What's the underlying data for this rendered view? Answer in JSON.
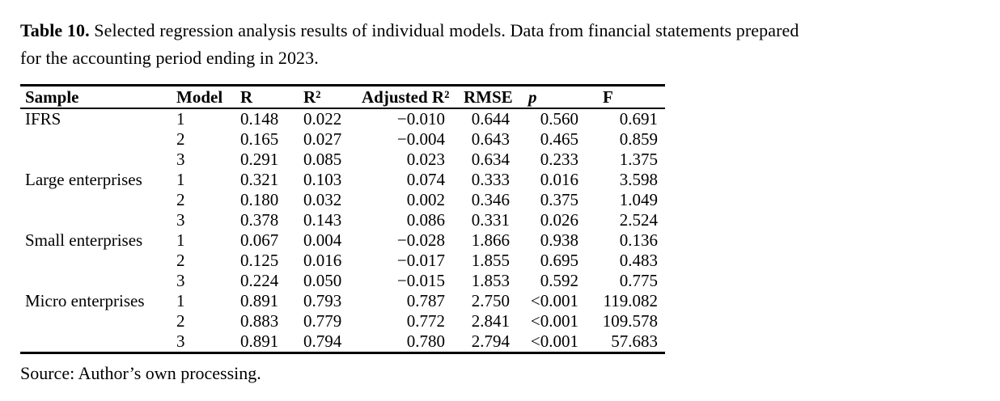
{
  "caption": {
    "label": "Table 10.",
    "line1": "Selected regression analysis results of individual models. Data from financial statements prepared",
    "line2": "for the accounting period ending in 2023."
  },
  "table": {
    "columns": [
      {
        "label": "Sample"
      },
      {
        "label": "Model"
      },
      {
        "label": "R"
      },
      {
        "label": "R²"
      },
      {
        "label": "Adjusted R²"
      },
      {
        "label": "RMSE"
      },
      {
        "label": "p"
      },
      {
        "label": "F"
      }
    ],
    "rows": [
      [
        "IFRS",
        "1",
        "0.148",
        "0.022",
        "−0.010",
        "0.644",
        "0.560",
        "0.691"
      ],
      [
        "",
        "2",
        "0.165",
        "0.027",
        "−0.004",
        "0.643",
        "0.465",
        "0.859"
      ],
      [
        "",
        "3",
        "0.291",
        "0.085",
        "0.023",
        "0.634",
        "0.233",
        "1.375"
      ],
      [
        "Large enterprises",
        "1",
        "0.321",
        "0.103",
        "0.074",
        "0.333",
        "0.016",
        "3.598"
      ],
      [
        "",
        "2",
        "0.180",
        "0.032",
        "0.002",
        "0.346",
        "0.375",
        "1.049"
      ],
      [
        "",
        "3",
        "0.378",
        "0.143",
        "0.086",
        "0.331",
        "0.026",
        "2.524"
      ],
      [
        "Small enterprises",
        "1",
        "0.067",
        "0.004",
        "−0.028",
        "1.866",
        "0.938",
        "0.136"
      ],
      [
        "",
        "2",
        "0.125",
        "0.016",
        "−0.017",
        "1.855",
        "0.695",
        "0.483"
      ],
      [
        "",
        "3",
        "0.224",
        "0.050",
        "−0.015",
        "1.853",
        "0.592",
        "0.775"
      ],
      [
        "Micro enterprises",
        "1",
        "0.891",
        "0.793",
        "0.787",
        "2.750",
        "<0.001",
        "119.082"
      ],
      [
        "",
        "2",
        "0.883",
        "0.779",
        "0.772",
        "2.841",
        "<0.001",
        "109.578"
      ],
      [
        "",
        "3",
        "0.891",
        "0.794",
        "0.780",
        "2.794",
        "<0.001",
        "57.683"
      ]
    ]
  },
  "source": "Source: Author’s own processing.",
  "colors": {
    "text": "#000000",
    "background": "#ffffff",
    "rule": "#000000"
  }
}
